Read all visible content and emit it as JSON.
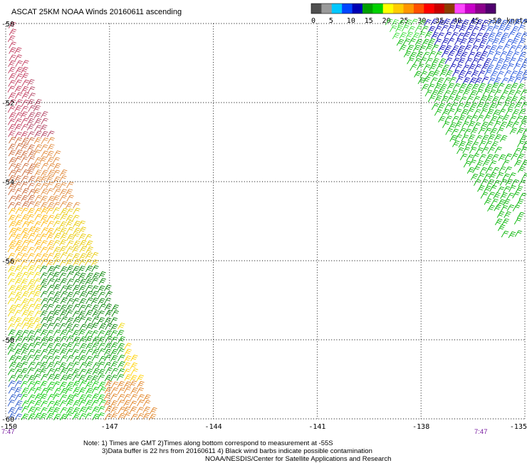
{
  "title": "ASCAT 25KM NOAA Winds 20160611 ascending",
  "legend": {
    "labels": [
      "0",
      "5",
      "10",
      "15",
      "20",
      "25",
      "30",
      "35",
      "40",
      "45",
      ">50"
    ],
    "unit": "knots",
    "colors": [
      "#505050",
      "#9a9a9a",
      "#00c8ff",
      "#0046ff",
      "#0000b4",
      "#00a000",
      "#00d200",
      "#ffff00",
      "#ffcc00",
      "#ff9600",
      "#ff5000",
      "#ff0000",
      "#c80000",
      "#8c3c00",
      "#ff46ff",
      "#c800c8",
      "#8c008c",
      "#50006e"
    ]
  },
  "map": {
    "longitude_ticks": [
      "-150",
      "-147",
      "-144",
      "-141",
      "-138",
      "-135"
    ],
    "latitude_ticks": [
      "-50",
      "-52",
      "-54",
      "-56",
      "-58",
      "-60"
    ],
    "longitude_range": [
      -150,
      -135
    ],
    "latitude_range": [
      -60,
      -50
    ]
  },
  "times": {
    "left": "7:47",
    "right": "7:47"
  },
  "notes": {
    "line1": "Note: 1) Times are GMT 2)Times along bottom correspond to measurement at -55S",
    "line2": "3)Data buffer is 22 hrs from 20160611 4) Black wind barbs indicate possible contamination",
    "line3": "NOAA/NESDIS/Center for Satellite Applications and Research"
  }
}
